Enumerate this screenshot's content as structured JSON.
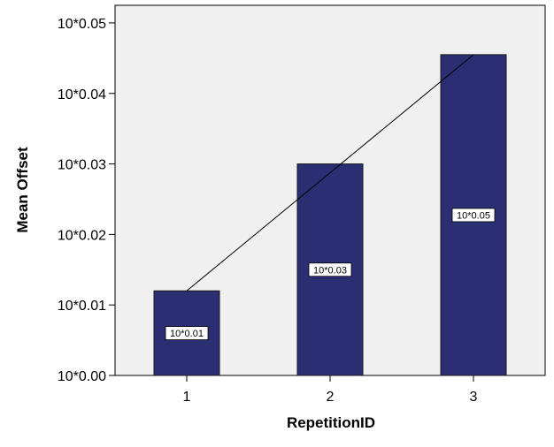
{
  "chart_data": {
    "type": "bar",
    "xlabel": "RepetitionID",
    "ylabel": "Mean Offset",
    "categories": [
      "1",
      "2",
      "3"
    ],
    "values": [
      0.012,
      0.03,
      0.0455
    ],
    "data_labels": [
      "10*0.01",
      "10*0.03",
      "10*0.05"
    ],
    "ylim": [
      0,
      0.0525
    ],
    "yticks": [
      {
        "value": 0.0,
        "label": "10*0.00"
      },
      {
        "value": 0.01,
        "label": "10*0.01"
      },
      {
        "value": 0.02,
        "label": "10*0.02"
      },
      {
        "value": 0.03,
        "label": "10*0.03"
      },
      {
        "value": 0.04,
        "label": "10*0.04"
      },
      {
        "value": 0.05,
        "label": "10*0.05"
      }
    ],
    "trend_line": {
      "x": [
        "1",
        "3"
      ],
      "y": [
        0.012,
        0.0455
      ]
    },
    "grid": false,
    "colors": {
      "bar_fill": "#2b2e72",
      "bar_stroke": "#1a1a1a",
      "plot_background": "#f0f0f0",
      "trend_line": "#000000"
    }
  }
}
